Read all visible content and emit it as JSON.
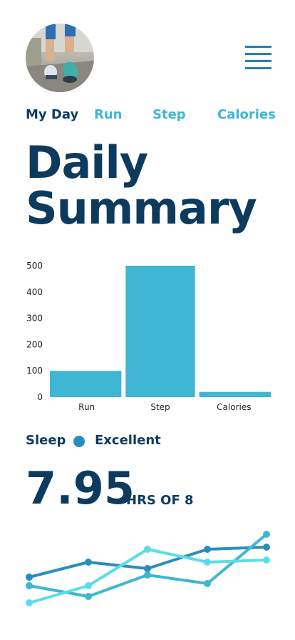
{
  "header": {
    "avatar_alt": "runner avatar",
    "menu_icon": "hamburger-menu-icon"
  },
  "tabs": [
    {
      "label": "My Day",
      "active": true
    },
    {
      "label": "Run",
      "active": false
    },
    {
      "label": "Step",
      "active": false
    },
    {
      "label": "Calories",
      "active": false
    }
  ],
  "title": {
    "line1": "Daily",
    "line2": "Summary"
  },
  "chart_data": [
    {
      "type": "bar",
      "categories": [
        "Run",
        "Step",
        "Calories"
      ],
      "values": [
        100,
        500,
        20
      ],
      "yticks": [
        0,
        100,
        200,
        300,
        400,
        500
      ],
      "ylim": [
        0,
        500
      ],
      "title": "",
      "xlabel": "",
      "ylabel": "",
      "color": "#3eb6d4",
      "grid": false
    },
    {
      "type": "line",
      "x": [
        1,
        2,
        3,
        4,
        5
      ],
      "series": [
        {
          "values": [
            2.3,
            3.0,
            2.7,
            3.6,
            3.7
          ],
          "color": "#2a8dc0"
        },
        {
          "values": [
            1.9,
            1.4,
            2.4,
            2.0,
            4.3
          ],
          "color": "#3eb6d4"
        },
        {
          "values": [
            1.1,
            1.9,
            3.6,
            3.0,
            3.1
          ],
          "color": "#5cdde6"
        }
      ],
      "title": "",
      "xlabel": "",
      "ylabel": "",
      "grid": false
    }
  ],
  "sleep": {
    "label": "Sleep",
    "status": "Excellent",
    "status_color": "#2a8dc0",
    "hours": "7.95",
    "of_label": "HRS OF 8"
  }
}
